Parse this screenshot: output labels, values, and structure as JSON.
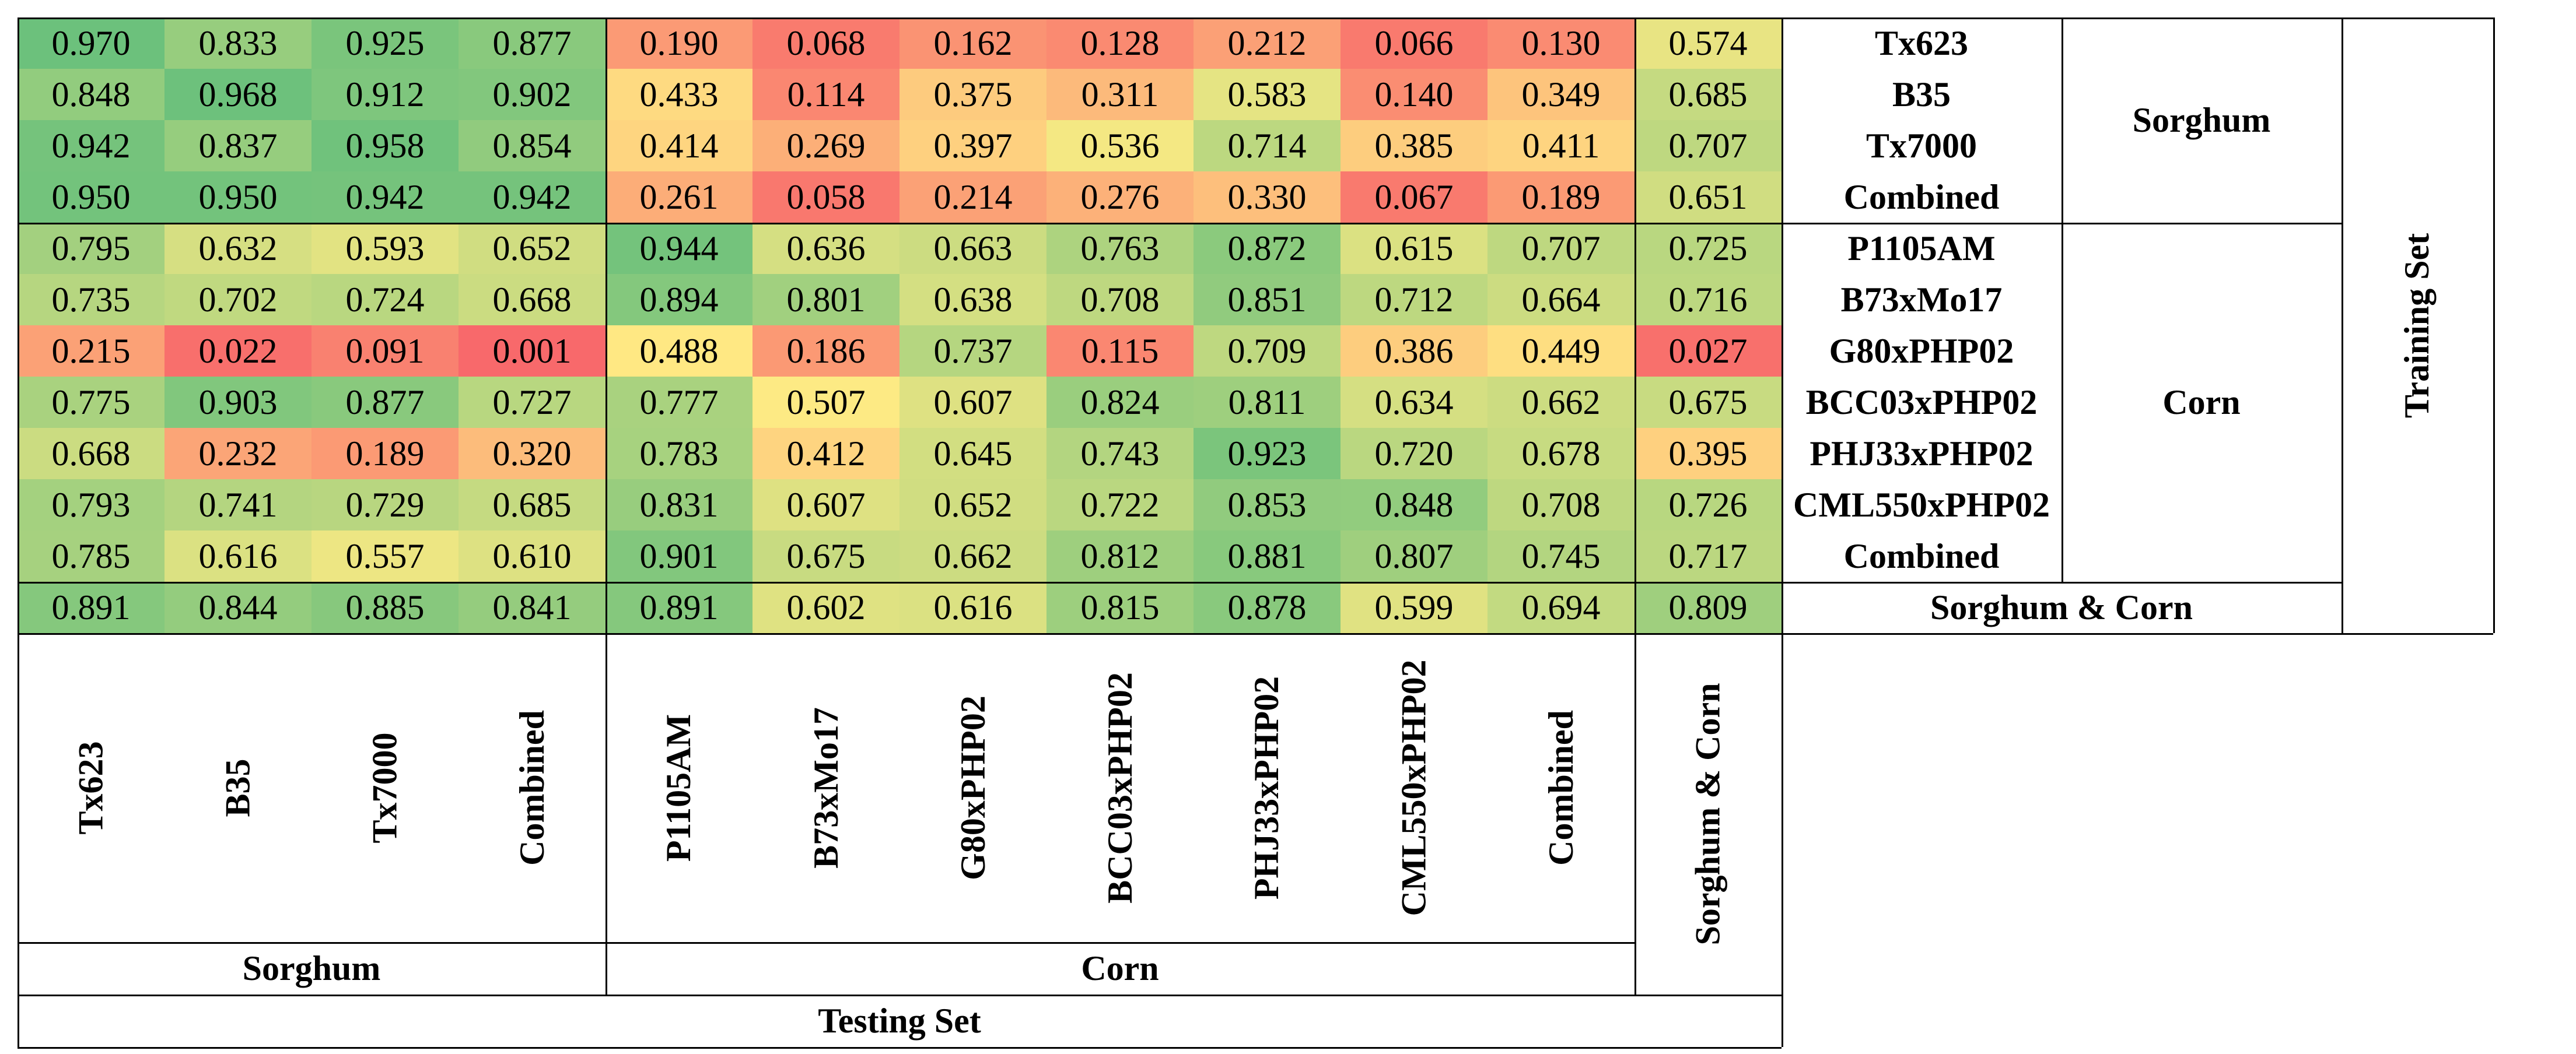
{
  "chart_data": {
    "type": "heatmap",
    "title": "",
    "training_axis_label": "Training Set",
    "testing_axis_label": "Testing Set",
    "rows": [
      {
        "group": "Sorghum",
        "label": "Tx623"
      },
      {
        "group": "Sorghum",
        "label": "B35"
      },
      {
        "group": "Sorghum",
        "label": "Tx7000"
      },
      {
        "group": "Sorghum",
        "label": "Combined"
      },
      {
        "group": "Corn",
        "label": "P1105AM"
      },
      {
        "group": "Corn",
        "label": "B73xMo17"
      },
      {
        "group": "Corn",
        "label": "G80xPHP02"
      },
      {
        "group": "Corn",
        "label": "BCC03xPHP02"
      },
      {
        "group": "Corn",
        "label": "PHJ33xPHP02"
      },
      {
        "group": "Corn",
        "label": "CML550xPHP02"
      },
      {
        "group": "Corn",
        "label": "Combined"
      },
      {
        "group": "Sorghum & Corn",
        "label": "Sorghum & Corn"
      }
    ],
    "row_groups": [
      "Sorghum",
      "Corn",
      "Sorghum & Corn"
    ],
    "columns": [
      {
        "group": "Sorghum",
        "label": "Tx623"
      },
      {
        "group": "Sorghum",
        "label": "B35"
      },
      {
        "group": "Sorghum",
        "label": "Tx7000"
      },
      {
        "group": "Sorghum",
        "label": "Combined"
      },
      {
        "group": "Corn",
        "label": "P1105AM"
      },
      {
        "group": "Corn",
        "label": "B73xMo17"
      },
      {
        "group": "Corn",
        "label": "G80xPHP02"
      },
      {
        "group": "Corn",
        "label": "BCC03xPHP02"
      },
      {
        "group": "Corn",
        "label": "PHJ33xPHP02"
      },
      {
        "group": "Corn",
        "label": "CML550xPHP02"
      },
      {
        "group": "Corn",
        "label": "Combined"
      },
      {
        "group": "Sorghum & Corn",
        "label": "Sorghum & Corn"
      }
    ],
    "column_groups": [
      "Sorghum",
      "Corn"
    ],
    "values": [
      [
        "0.970",
        "0.833",
        "0.925",
        "0.877",
        "0.190",
        "0.068",
        "0.162",
        "0.128",
        "0.212",
        "0.066",
        "0.130",
        "0.574"
      ],
      [
        "0.848",
        "0.968",
        "0.912",
        "0.902",
        "0.433",
        "0.114",
        "0.375",
        "0.311",
        "0.583",
        "0.140",
        "0.349",
        "0.685"
      ],
      [
        "0.942",
        "0.837",
        "0.958",
        "0.854",
        "0.414",
        "0.269",
        "0.397",
        "0.536",
        "0.714",
        "0.385",
        "0.411",
        "0.707"
      ],
      [
        "0.950",
        "0.950",
        "0.942",
        "0.942",
        "0.261",
        "0.058",
        "0.214",
        "0.276",
        "0.330",
        "0.067",
        "0.189",
        "0.651"
      ],
      [
        "0.795",
        "0.632",
        "0.593",
        "0.652",
        "0.944",
        "0.636",
        "0.663",
        "0.763",
        "0.872",
        "0.615",
        "0.707",
        "0.725"
      ],
      [
        "0.735",
        "0.702",
        "0.724",
        "0.668",
        "0.894",
        "0.801",
        "0.638",
        "0.708",
        "0.851",
        "0.712",
        "0.664",
        "0.716"
      ],
      [
        "0.215",
        "0.022",
        "0.091",
        "0.001",
        "0.488",
        "0.186",
        "0.737",
        "0.115",
        "0.709",
        "0.386",
        "0.449",
        "0.027"
      ],
      [
        "0.775",
        "0.903",
        "0.877",
        "0.727",
        "0.777",
        "0.507",
        "0.607",
        "0.824",
        "0.811",
        "0.634",
        "0.662",
        "0.675"
      ],
      [
        "0.668",
        "0.232",
        "0.189",
        "0.320",
        "0.783",
        "0.412",
        "0.645",
        "0.743",
        "0.923",
        "0.720",
        "0.678",
        "0.395"
      ],
      [
        "0.793",
        "0.741",
        "0.729",
        "0.685",
        "0.831",
        "0.607",
        "0.652",
        "0.722",
        "0.853",
        "0.848",
        "0.708",
        "0.726"
      ],
      [
        "0.785",
        "0.616",
        "0.557",
        "0.610",
        "0.901",
        "0.675",
        "0.662",
        "0.812",
        "0.881",
        "0.807",
        "0.745",
        "0.717"
      ],
      [
        "0.891",
        "0.844",
        "0.885",
        "0.841",
        "0.891",
        "0.602",
        "0.616",
        "0.815",
        "0.878",
        "0.599",
        "0.694",
        "0.809"
      ]
    ],
    "color_scale": {
      "low": "#f8696b",
      "mid": "#ffeb84",
      "high": "#63be7b"
    }
  }
}
